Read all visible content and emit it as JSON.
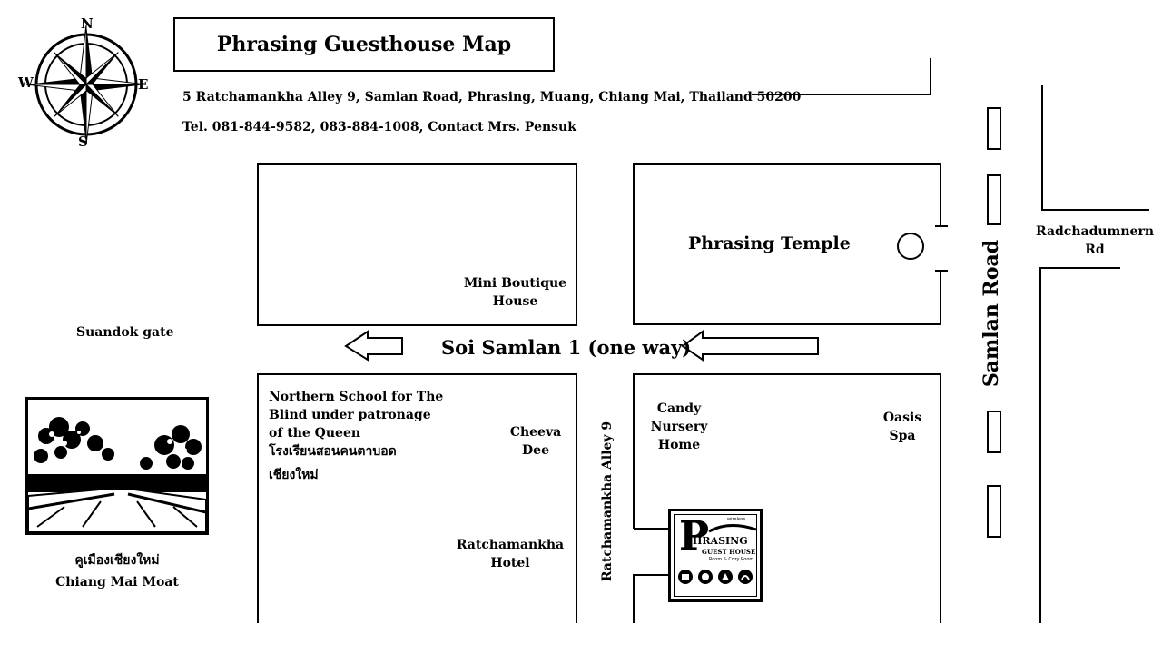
{
  "title": "Phrasing Guesthouse Map",
  "address": "5 Ratchamankha Alley 9, Samlan Road, Phrasing, Muang, Chiang Mai, Thailand 50200",
  "contact": "Tel. 081-844-9582,  083-884-1008,  Contact Mrs. Pensuk",
  "compass": {
    "n": "N",
    "s": "S",
    "e": "E",
    "w": "W"
  },
  "places": {
    "temple": "Phrasing Temple",
    "mini_boutique_1": "Mini Boutique",
    "mini_boutique_2": "House",
    "suandok": "Suandok gate",
    "school_1": "Northern School for The",
    "school_2": "Blind under patronage",
    "school_3": "of the Queen",
    "school_th_1": "โรงเรียนสอนคนตาบอด",
    "school_th_2": "เชียงใหม่",
    "cheeva_1": "Cheeva",
    "cheeva_2": "Dee",
    "candy_1": "Candy",
    "candy_2": "Nursery",
    "candy_3": "Home",
    "oasis_1": "Oasis",
    "oasis_2": "Spa",
    "hotel_1": "Ratchamankha",
    "hotel_2": "Hotel",
    "moat_th": "คูเมืองเชียงใหม่",
    "moat_en": "Chiang Mai Moat",
    "radchadumnern_1": "Radchadumnern",
    "radchadumnern_2": "Rd"
  },
  "streets": {
    "soi": "Soi Samlan 1 (one way)",
    "samlan": "Samlan Road",
    "alley": "Ratchamankha Alley 9"
  },
  "logo": {
    "letter": "P",
    "name": "HRASING",
    "sub1": "GUEST HOUSE",
    "sub2": "Room & Cozy Room",
    "tag": "wireless"
  }
}
